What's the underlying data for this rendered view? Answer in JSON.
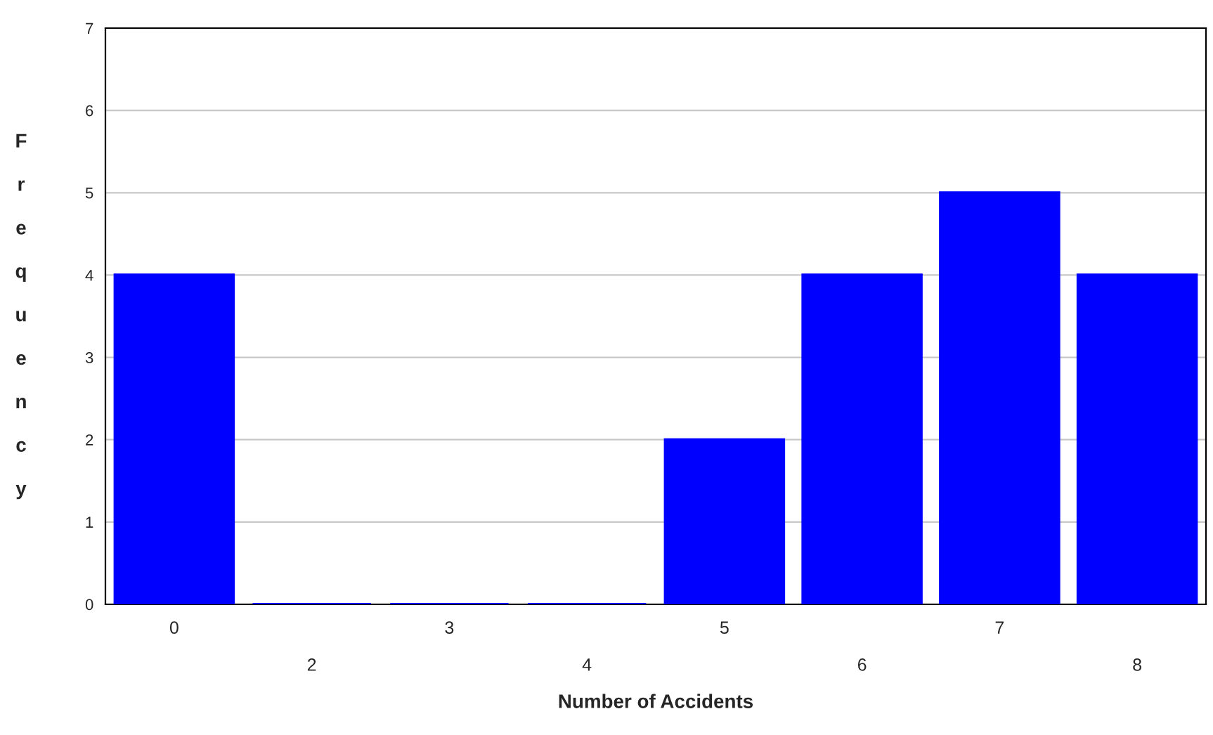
{
  "chart_data": {
    "type": "bar",
    "xlabel": "Number of Accidents",
    "ylabel": "Frequency",
    "categories": [
      "0",
      "2",
      "3",
      "4",
      "5",
      "6",
      "7",
      "8"
    ],
    "values": [
      4,
      0,
      0,
      0,
      2,
      4,
      5,
      4
    ],
    "color": "#0000ff",
    "ylim": [
      0,
      7
    ],
    "yticks": [
      0,
      1,
      2,
      3,
      4,
      5,
      6,
      7
    ],
    "grid": "y"
  }
}
